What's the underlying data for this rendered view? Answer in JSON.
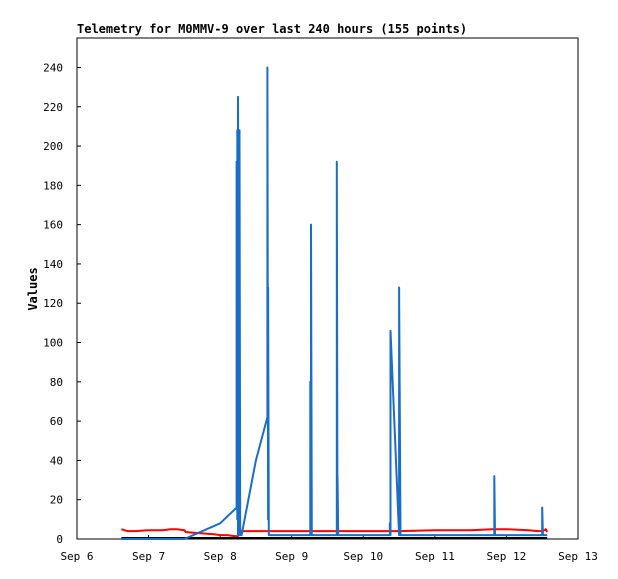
{
  "chart_data": {
    "type": "line",
    "title": "Telemetry for M0MMV-9 over last 240 hours (155 points)",
    "xlabel": "",
    "ylabel": "Values",
    "x_tick_labels": [
      "Sep 6",
      "Sep 7",
      "Sep 8",
      "Sep 9",
      "Sep 10",
      "Sep 11",
      "Sep 12",
      "Sep 13"
    ],
    "x_domain_days": [
      6,
      13
    ],
    "ylim": [
      0,
      255
    ],
    "y_ticks": [
      0,
      20,
      40,
      60,
      80,
      100,
      120,
      140,
      160,
      180,
      200,
      220,
      240
    ],
    "grid": false,
    "legend": "none",
    "series": [
      {
        "color": "#ff0000",
        "x": [
          6.62,
          6.7,
          6.8,
          7.0,
          7.2,
          7.3,
          7.4,
          7.5,
          7.52,
          7.7,
          7.9,
          8.0,
          8.1,
          8.2,
          8.25,
          8.3,
          8.6,
          9.0,
          9.5,
          10.0,
          10.5,
          11.0,
          11.5,
          11.8,
          12.0,
          12.3,
          12.45,
          12.5,
          12.55,
          12.57
        ],
        "y": [
          5,
          4,
          4,
          4.5,
          4.5,
          5,
          5,
          4.5,
          3.5,
          3,
          2.5,
          2,
          2,
          1.5,
          1.5,
          4,
          4,
          4,
          4,
          4,
          4,
          4.5,
          4.5,
          5,
          5,
          4.5,
          4,
          4,
          5,
          3.5
        ]
      },
      {
        "color": "#000000",
        "x": [
          6.62,
          12.57
        ],
        "y": [
          0.5,
          0.5
        ]
      },
      {
        "color": "#1a6ec8",
        "x": [
          6.62,
          7.5,
          8.0,
          8.0,
          8.23,
          8.23,
          8.24,
          8.24,
          8.25,
          8.25,
          8.27,
          8.27,
          8.28,
          8.28,
          8.3,
          8.5,
          8.66,
          8.66,
          8.67,
          8.67,
          8.68,
          8.68,
          8.7,
          9.2,
          9.26,
          9.26,
          9.27,
          9.27,
          9.28,
          9.28,
          9.3,
          9.5,
          9.63,
          9.63,
          9.64,
          9.64,
          9.65,
          9.65,
          9.66,
          9.66,
          9.7,
          10.0,
          10.37,
          10.37,
          10.38,
          10.38,
          10.5,
          10.5,
          10.52,
          10.52,
          10.53,
          10.53,
          10.55,
          11.0,
          11.5,
          11.83,
          11.83,
          11.84,
          11.84,
          12.0,
          12.3,
          12.5,
          12.5,
          12.51,
          12.51,
          12.57
        ],
        "y": [
          0,
          0,
          8,
          8,
          16,
          192,
          10,
          208,
          2,
          225,
          2,
          208,
          2,
          2,
          2,
          40,
          62,
          240,
          10,
          128,
          2,
          2,
          2,
          2,
          2,
          80,
          2,
          160,
          2,
          2,
          2,
          2,
          2,
          192,
          2,
          32,
          2,
          2,
          2,
          2,
          2,
          2,
          2,
          8,
          2,
          106,
          2,
          128,
          2,
          2,
          2,
          2,
          2,
          2,
          2,
          2,
          32,
          2,
          2,
          2,
          2,
          2,
          16,
          2,
          2,
          2
        ]
      }
    ]
  }
}
